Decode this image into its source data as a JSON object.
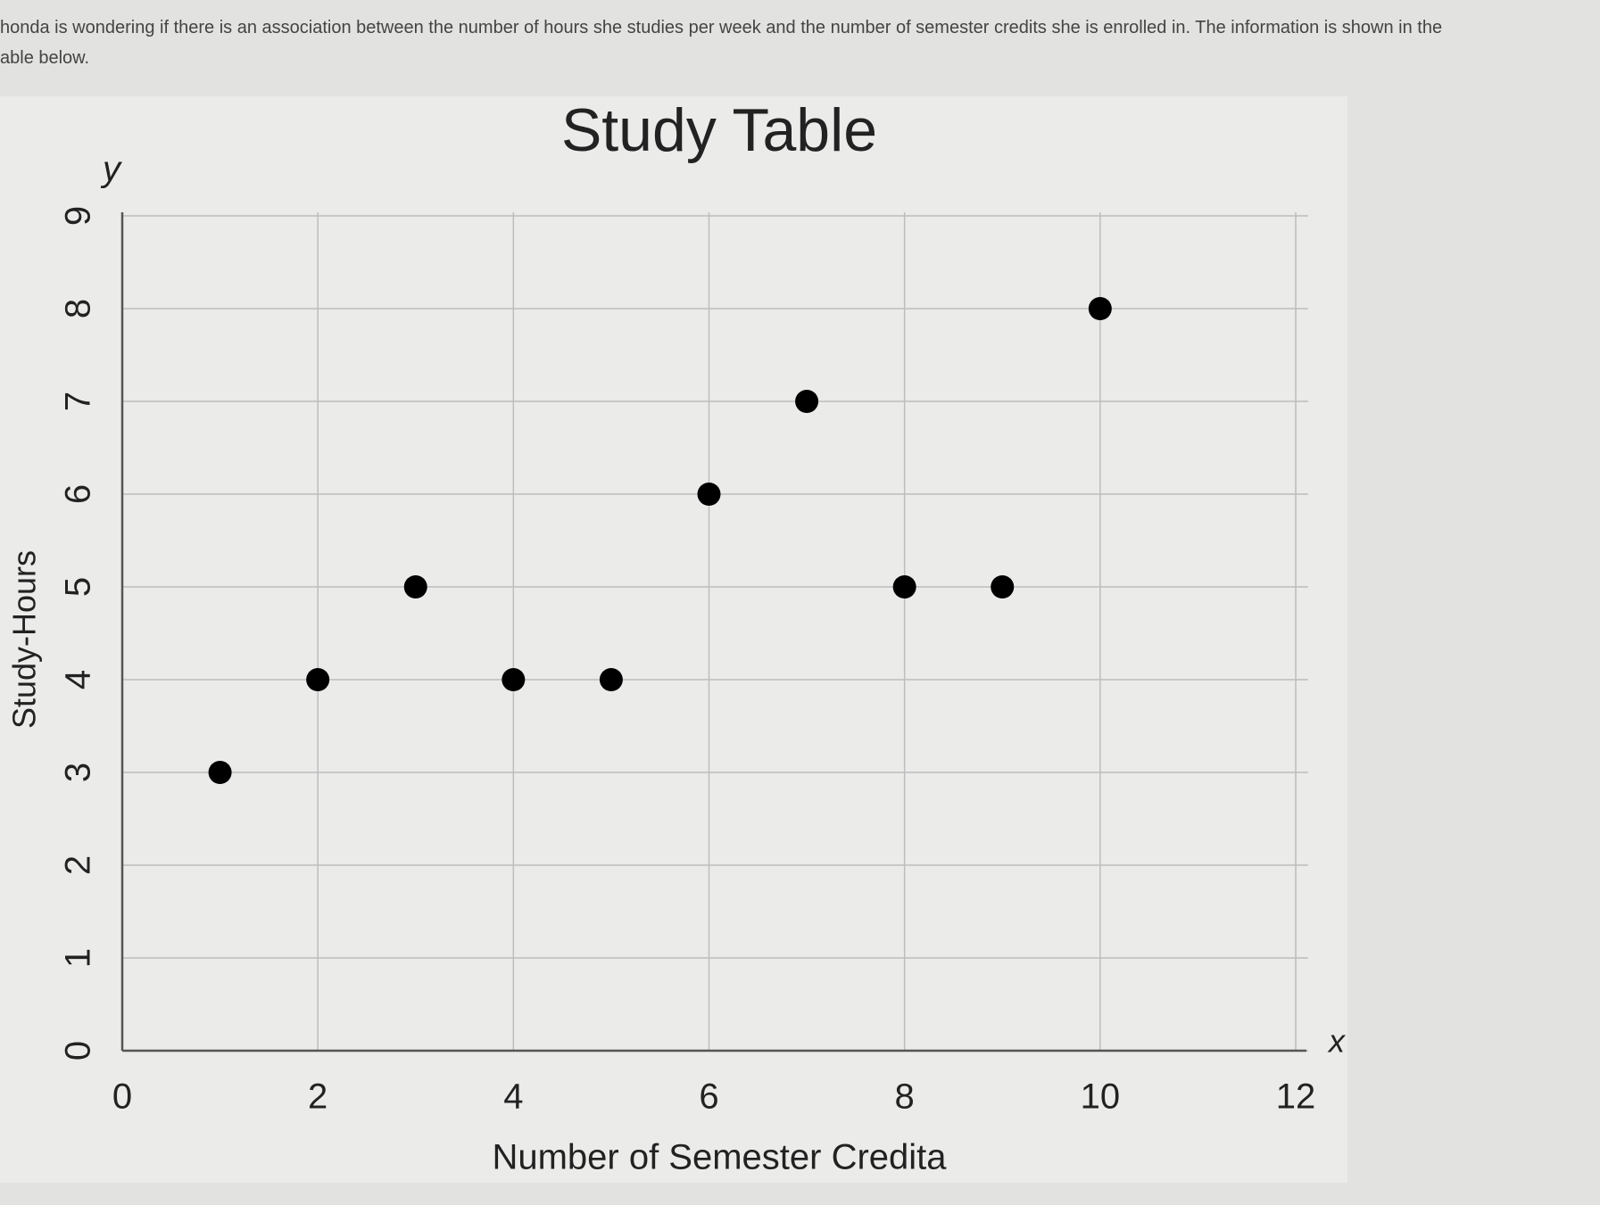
{
  "intro": [
    "honda is wondering if there is an association between the number of hours she studies per week and the number of semester credits she is enrolled in. The information is shown in the",
    "able below."
  ],
  "chart_data": {
    "type": "scatter",
    "title": "Study Table",
    "x_label": "Number of Semester Credita",
    "y_label": "Study-Hours",
    "x_symbol": "x",
    "y_symbol": "y",
    "x": [
      1,
      2,
      3,
      4,
      5,
      6,
      7,
      8,
      9,
      10
    ],
    "values": [
      3,
      4,
      5,
      4,
      4,
      6,
      7,
      5,
      5,
      8
    ],
    "color": "#000000",
    "xlim": [
      0,
      12
    ],
    "xticks": [
      0,
      2,
      4,
      6,
      8,
      10,
      12
    ],
    "ylim": [
      0,
      9
    ],
    "yticks": [
      0,
      1,
      2,
      3,
      4,
      5,
      6,
      7,
      8,
      9
    ],
    "grid": true
  }
}
